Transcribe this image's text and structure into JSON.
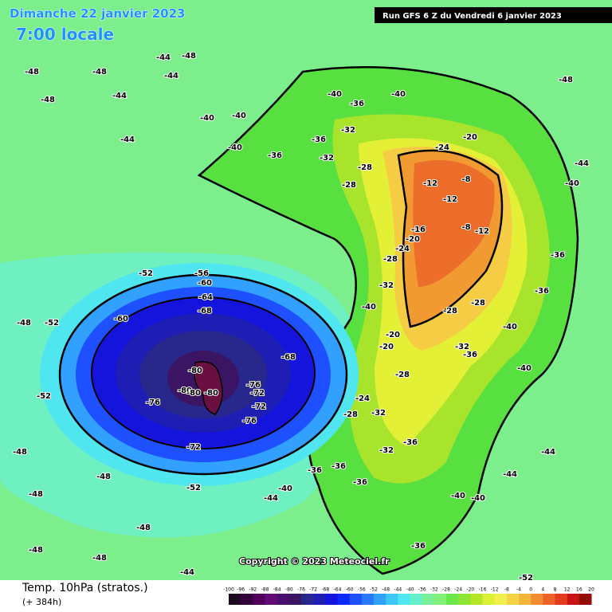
{
  "header": {
    "date": "Dimanche 22 janvier 2023",
    "time": "7:00 locale",
    "run": "Run GFS 6 Z du Vendredi 6 janvier 2023"
  },
  "copyright": "Copyright © 2023 Meteociel.fr",
  "legend": {
    "title": "Temp. 10hPa (stratos.)",
    "lead": "(+ 384h)",
    "ticks": [
      -100,
      -96,
      -92,
      -88,
      -84,
      -80,
      -76,
      -72,
      -68,
      -64,
      -60,
      -56,
      -52,
      -48,
      -44,
      -40,
      -36,
      -32,
      -28,
      -24,
      -20,
      -16,
      -12,
      -8,
      -4,
      0,
      4,
      8,
      12,
      16,
      20
    ],
    "colors": [
      "#1e0a1e",
      "#32003c",
      "#50005a",
      "#640a78",
      "#4b0f6e",
      "#3c1464",
      "#28288c",
      "#1e1eb4",
      "#1414dc",
      "#0a28ff",
      "#1e50ff",
      "#2878ff",
      "#32a0ff",
      "#3cc8ff",
      "#50e6f0",
      "#64f0c8",
      "#78f09a",
      "#82f078",
      "#6ee650",
      "#8ce632",
      "#b4e628",
      "#dcf032",
      "#f0f050",
      "#f5d246",
      "#f5b43c",
      "#f08c32",
      "#eb6428",
      "#e63c1e",
      "#c81414",
      "#960a0a"
    ]
  },
  "map": {
    "labels": [
      "-44",
      "-48",
      "-44",
      "-48",
      "-48",
      "-48",
      "-44",
      "-40",
      "-40",
      "-40",
      "-44",
      "-36",
      "-36",
      "-40",
      "-36",
      "-40",
      "-32",
      "-32",
      "-28",
      "-28",
      "-24",
      "-20",
      "-12",
      "-8",
      "-12",
      "-8",
      "-16",
      "-20",
      "-12",
      "-28",
      "-24",
      "-32",
      "-40",
      "-28",
      "-28",
      "-32",
      "-36",
      "-40",
      "-36",
      "-36",
      "-40",
      "-44",
      "-48",
      "-52",
      "-52",
      "-56",
      "-60",
      "-64",
      "-68",
      "-60",
      "-68",
      "-80",
      "-80",
      "-80",
      "-80",
      "-76",
      "-76",
      "-72",
      "-72",
      "-76",
      "-72",
      "-52",
      "-52",
      "-52",
      "-48",
      "-48",
      "-48",
      "-48",
      "-40",
      "-44",
      "-36",
      "-36",
      "-36",
      "-32",
      "-28",
      "-28",
      "-24",
      "-32",
      "-20",
      "-20",
      "-36",
      "-40",
      "-40",
      "-44",
      "-44",
      "-36",
      "-40",
      "-48",
      "-48",
      "-44",
      "-48"
    ]
  }
}
